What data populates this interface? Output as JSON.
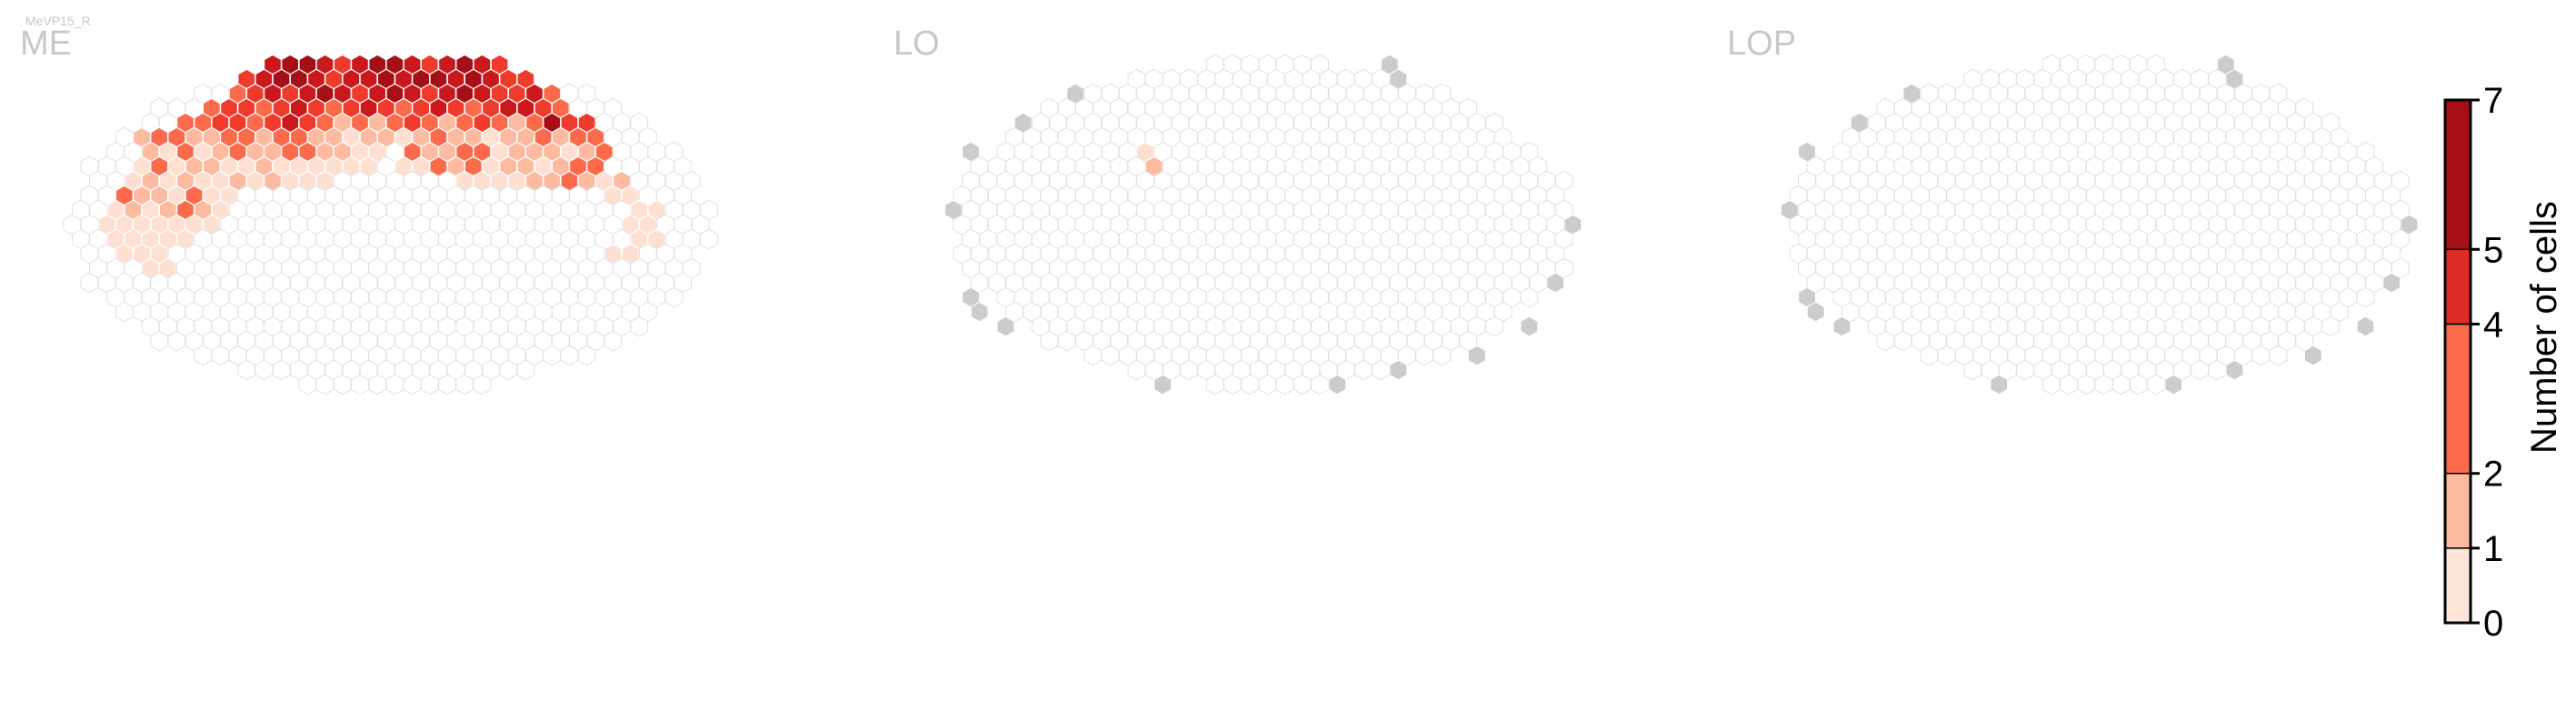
{
  "figure": {
    "cell_type": "MeVP15_R"
  },
  "chart_data": [
    {
      "type": "heatmap",
      "panel": "ME",
      "description": "hexagonal column map; values are number of cells per column",
      "background_color": "#ffffff",
      "empty_hex_edge": "#e0e0e0",
      "region": {
        "center": [
          1.05,
          -0.6
        ],
        "radius": 5.75
      },
      "filled": [
        {
          "row": 1,
          "cols": [
            12,
            13,
            14,
            15,
            16,
            17,
            18,
            19,
            20,
            21,
            22,
            23,
            24,
            25
          ],
          "values": [
            5,
            6,
            6,
            5,
            4,
            5,
            6,
            6,
            5,
            4,
            5,
            6,
            5,
            4
          ]
        },
        {
          "row": 2,
          "cols": [
            11,
            12,
            13,
            14,
            15,
            16,
            17,
            18,
            19,
            20,
            21,
            22,
            23,
            24,
            25,
            26,
            27
          ],
          "values": [
            4,
            5,
            6,
            6,
            5,
            4,
            5,
            5,
            6,
            5,
            6,
            6,
            5,
            6,
            5,
            4,
            4
          ]
        },
        {
          "row": 3,
          "cols": [
            10,
            11,
            12,
            13,
            14,
            15,
            16,
            17,
            18,
            19,
            20,
            21,
            22,
            23,
            24,
            25,
            26,
            27,
            28
          ],
          "values": [
            3,
            4,
            5,
            4,
            5,
            6,
            5,
            4,
            5,
            6,
            5,
            4,
            5,
            6,
            5,
            4,
            4,
            5,
            3
          ]
        },
        {
          "row": 4,
          "cols": [
            9,
            10,
            11,
            12,
            13,
            14,
            15,
            16,
            17,
            18,
            19,
            20,
            21,
            22,
            23,
            24,
            25,
            26,
            27,
            28,
            29
          ],
          "values": [
            3,
            4,
            4,
            3,
            4,
            5,
            4,
            3,
            4,
            5,
            4,
            3,
            4,
            5,
            4,
            3,
            4,
            5,
            5,
            4,
            3
          ]
        },
        {
          "row": 5,
          "cols": [
            7,
            8,
            9,
            10,
            11,
            12,
            13,
            14,
            15,
            16,
            17,
            18,
            19,
            20,
            21,
            22,
            23,
            24,
            25,
            26,
            27,
            28,
            29,
            30
          ],
          "values": [
            3,
            3,
            4,
            4,
            3,
            4,
            5,
            4,
            3,
            2,
            3,
            2,
            3,
            4,
            3,
            2,
            3,
            4,
            3,
            2,
            3,
            6,
            4,
            4
          ]
        },
        {
          "row": 6,
          "cols": [
            5,
            6,
            7,
            8,
            9,
            10,
            11,
            12,
            13,
            14,
            15,
            16,
            17,
            18,
            19,
            20,
            21,
            22,
            23,
            24,
            25,
            26,
            27,
            28,
            29,
            30,
            31
          ],
          "values": [
            2,
            3,
            3,
            2,
            2,
            3,
            3,
            2,
            3,
            3,
            2,
            2,
            1,
            2,
            2,
            1,
            2,
            3,
            2,
            2,
            1,
            2,
            2,
            3,
            2,
            3,
            3
          ]
        },
        {
          "row": 7,
          "cols": [
            5,
            6,
            7,
            8,
            9,
            10,
            11,
            12,
            13,
            14,
            15,
            16,
            17,
            18,
            20,
            21,
            22,
            23,
            24,
            25,
            26,
            27,
            28,
            29,
            30,
            31
          ],
          "values": [
            2,
            1,
            3,
            1,
            2,
            3,
            2,
            2,
            3,
            3,
            2,
            2,
            1,
            1,
            3,
            2,
            2,
            3,
            3,
            1,
            2,
            2,
            2,
            1,
            2,
            3
          ]
        },
        {
          "row": 8,
          "cols": [
            5,
            6,
            7,
            8,
            9,
            10,
            11,
            12,
            13,
            14,
            15,
            16,
            17,
            18,
            20,
            21,
            22,
            23,
            24,
            25,
            26,
            27,
            28,
            29,
            30,
            31
          ],
          "values": [
            1,
            3,
            1,
            2,
            2,
            1,
            1,
            2,
            1,
            1,
            1,
            1,
            1,
            1,
            1,
            1,
            3,
            2,
            3,
            1,
            2,
            2,
            1,
            2,
            3,
            3
          ]
        },
        {
          "row": 9,
          "cols": [
            4,
            5,
            6,
            7,
            8,
            9,
            10,
            11,
            12,
            13,
            14,
            15,
            23,
            24,
            25,
            26,
            27,
            28,
            29,
            30,
            31,
            32
          ],
          "values": [
            1,
            2,
            1,
            2,
            1,
            1,
            2,
            1,
            2,
            1,
            1,
            1,
            1,
            1,
            1,
            1,
            2,
            2,
            3,
            2,
            1,
            2
          ]
        },
        {
          "row": 10,
          "cols": [
            4,
            5,
            6,
            7,
            8,
            9,
            10,
            32,
            33
          ],
          "values": [
            3,
            2,
            2,
            1,
            3,
            1,
            1,
            1,
            1
          ]
        },
        {
          "row": 11,
          "cols": [
            3,
            4,
            5,
            6,
            7,
            8,
            9,
            33,
            34
          ],
          "values": [
            1,
            2,
            1,
            2,
            3,
            2,
            1,
            1,
            1
          ]
        },
        {
          "row": 12,
          "cols": [
            3,
            4,
            5,
            6,
            7,
            8,
            9,
            33,
            34
          ],
          "values": [
            1,
            1,
            1,
            1,
            1,
            1,
            1,
            1,
            1
          ]
        },
        {
          "row": 13,
          "cols": [
            3,
            4,
            5,
            6,
            7,
            33,
            34
          ],
          "values": [
            1,
            1,
            1,
            1,
            1,
            1,
            1
          ]
        },
        {
          "row": 14,
          "cols": [
            4,
            5,
            6,
            32,
            33
          ],
          "values": [
            1,
            1,
            1,
            1,
            1
          ]
        },
        {
          "row": 15,
          "cols": [
            5,
            6
          ],
          "values": [
            1,
            1
          ]
        }
      ]
    },
    {
      "type": "heatmap",
      "panel": "LO",
      "description": "hexagonal column map; values are number of cells per column",
      "background_color": "#ffffff",
      "empty_hex_edge": "#e0e0e0",
      "region": {
        "center": [
          1.0,
          -0.6
        ],
        "radius": 5.6
      },
      "filled": [
        {
          "row": 7,
          "cols": [
            12
          ],
          "values": [
            1
          ]
        },
        {
          "row": 8,
          "cols": [
            13
          ],
          "values": [
            2
          ]
        }
      ],
      "outside_columns": "grey (#cccccc) hexes along the perimeter"
    },
    {
      "type": "heatmap",
      "panel": "LOP",
      "description": "hexagonal column map; no filled columns",
      "background_color": "#ffffff",
      "empty_hex_edge": "#e0e0e0",
      "region": {
        "center": [
          1.0,
          -0.6
        ],
        "radius": 5.6
      },
      "filled": [],
      "outside_columns": "grey (#cccccc) hexes along the perimeter"
    }
  ],
  "colorbar": {
    "label": "Number of cells",
    "ticks": [
      "0",
      "1",
      "2",
      "4",
      "5",
      "7"
    ],
    "bins": [
      {
        "from": 0,
        "to": 1,
        "color": "#fee5d9"
      },
      {
        "from": 1,
        "to": 2,
        "color": "#fcbba1"
      },
      {
        "from": 2,
        "to": 4,
        "color": "#fb6a4a"
      },
      {
        "from": 4,
        "to": 5,
        "color": "#de2d26"
      },
      {
        "from": 5,
        "to": 7,
        "color": "#a50f15"
      }
    ]
  },
  "colors": {
    "level_1": "#fee0d2",
    "level_2": "#fcbba1",
    "level_3": "#fb6a4a",
    "level_4": "#ef3b2c",
    "level_5": "#cb181d",
    "level_6": "#a50f15",
    "outside": "#cccccc",
    "panel_label": "#c8c8c8"
  }
}
